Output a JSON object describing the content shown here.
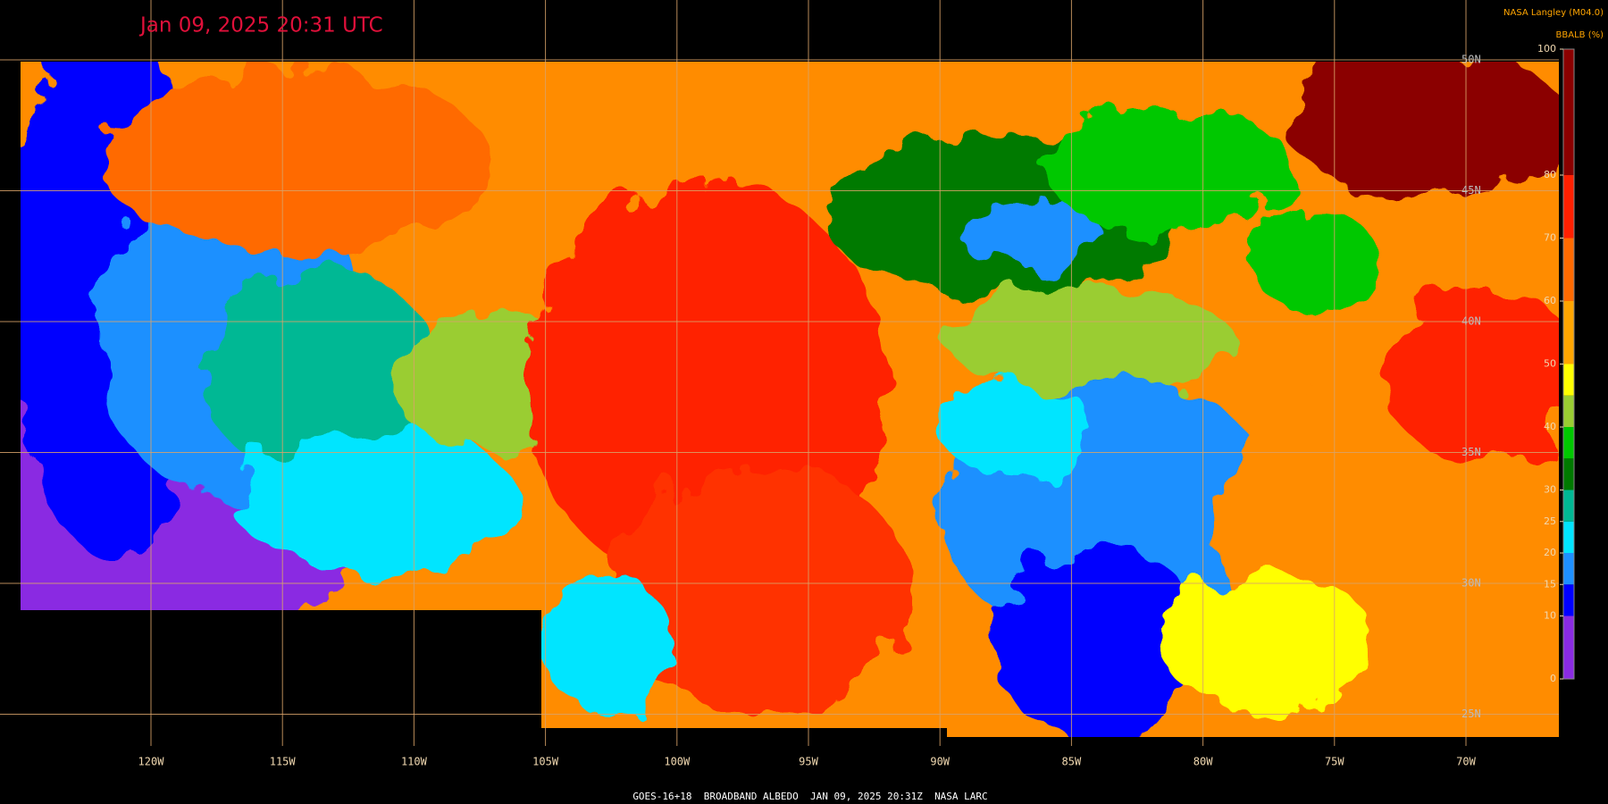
{
  "header": {
    "title": "Jan 09, 2025 20:31 UTC",
    "source": "NASA Langley (M04.0)"
  },
  "colorbar": {
    "title": "BBALB (%)",
    "lim": [
      0,
      100
    ],
    "ticks": [
      0,
      10,
      15,
      20,
      25,
      30,
      40,
      50,
      60,
      70,
      80,
      100
    ],
    "segments": [
      {
        "from": 0,
        "to": 10,
        "color": "#8a2be2"
      },
      {
        "from": 10,
        "to": 15,
        "color": "#0000ff"
      },
      {
        "from": 15,
        "to": 20,
        "color": "#1e90ff"
      },
      {
        "from": 20,
        "to": 25,
        "color": "#00e5ff"
      },
      {
        "from": 25,
        "to": 30,
        "color": "#00b894"
      },
      {
        "from": 30,
        "to": 35,
        "color": "#007a00"
      },
      {
        "from": 35,
        "to": 40,
        "color": "#00c800"
      },
      {
        "from": 40,
        "to": 45,
        "color": "#9acd32"
      },
      {
        "from": 45,
        "to": 50,
        "color": "#ffff00"
      },
      {
        "from": 50,
        "to": 60,
        "color": "#ffa500"
      },
      {
        "from": 60,
        "to": 70,
        "color": "#ff6a00"
      },
      {
        "from": 70,
        "to": 80,
        "color": "#ff2000"
      },
      {
        "from": 80,
        "to": 100,
        "color": "#8b0000"
      }
    ]
  },
  "map": {
    "longitude_labels": [
      "120W",
      "115W",
      "110W",
      "105W",
      "100W",
      "95W",
      "90W",
      "85W",
      "80W",
      "75W",
      "70W"
    ],
    "latitude_labels": [
      "50N",
      "45N",
      "40N",
      "35N",
      "30N",
      "25N"
    ]
  },
  "footer": "GOES-16+18  BROADBAND ALBEDO  JAN 09, 2025 20:31Z  NASA LARC"
}
